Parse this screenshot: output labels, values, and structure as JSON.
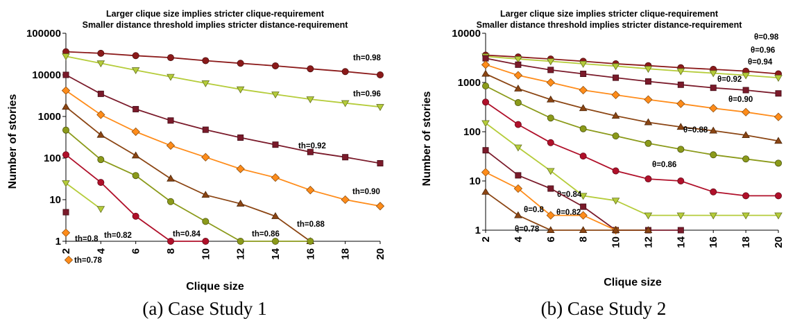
{
  "captions": [
    "(a) Case Study 1",
    "(b) Case Study 2"
  ],
  "chart_data": [
    {
      "type": "line",
      "title": [
        "Larger clique size implies stricter clique-requirement",
        "Smaller distance threshold implies stricter distance-requirement"
      ],
      "xlabel": "Clique size",
      "ylabel": "Number of stories",
      "yscale": "log",
      "ylim": [
        1,
        100000
      ],
      "xlim": [
        2,
        20
      ],
      "xticks": [
        2,
        4,
        6,
        8,
        10,
        12,
        14,
        16,
        18,
        20
      ],
      "yticks": [
        1,
        10,
        100,
        1000,
        10000,
        100000
      ],
      "ytick_labels": [
        "1",
        "10",
        "100",
        "1000",
        "10000",
        "100000"
      ],
      "grid": false,
      "series": [
        {
          "name": "th=0.98",
          "color": "#8b1a1a",
          "marker": "circle",
          "x": [
            2,
            4,
            6,
            8,
            10,
            12,
            14,
            16,
            18,
            20
          ],
          "values": [
            36000,
            33000,
            29000,
            26000,
            22000,
            19000,
            16500,
            14000,
            12000,
            10000
          ]
        },
        {
          "name": "th=0.96",
          "color": "#b5cc3a",
          "marker": "triangle-down",
          "x": [
            2,
            4,
            6,
            8,
            10,
            12,
            14,
            16,
            18,
            20
          ],
          "values": [
            28000,
            19000,
            13000,
            9000,
            6300,
            4500,
            3400,
            2600,
            2100,
            1700
          ]
        },
        {
          "name": "th=0.92",
          "color": "#7a1a2a",
          "marker": "square",
          "x": [
            2,
            4,
            6,
            8,
            10,
            12,
            14,
            16,
            18,
            20
          ],
          "values": [
            10000,
            3500,
            1500,
            800,
            480,
            310,
            210,
            140,
            105,
            75
          ]
        },
        {
          "name": "th=0.90",
          "color": "#ff8c1a",
          "marker": "diamond",
          "x": [
            2,
            4,
            6,
            8,
            10,
            12,
            14,
            16,
            18,
            20
          ],
          "values": [
            4200,
            1100,
            430,
            200,
            105,
            55,
            34,
            17,
            10,
            7
          ]
        },
        {
          "name": "th=0.88",
          "color": "#8b4513",
          "marker": "triangle-up",
          "x": [
            2,
            4,
            6,
            8,
            10,
            12,
            14,
            16
          ],
          "values": [
            1700,
            360,
            115,
            32,
            13,
            8,
            4,
            1
          ]
        },
        {
          "name": "th=0.86",
          "color": "#8b9a1a",
          "marker": "circle",
          "x": [
            2,
            4,
            6,
            8,
            10,
            12,
            14,
            16
          ],
          "values": [
            470,
            92,
            38,
            9,
            3,
            1,
            1,
            1
          ]
        },
        {
          "name": "th=0.84",
          "color": "#b0102a",
          "marker": "circle",
          "x": [
            2,
            4,
            6,
            8,
            10
          ],
          "values": [
            120,
            26,
            4,
            1,
            1
          ]
        },
        {
          "name": "th=0.82",
          "color": "#b5cc3a",
          "marker": "triangle-down",
          "x": [
            2,
            4
          ],
          "values": [
            25,
            6
          ]
        },
        {
          "name": "th=0.8",
          "color": "#7a1a2a",
          "marker": "square",
          "x": [
            2
          ],
          "values": [
            5
          ]
        },
        {
          "name": "th=0.78",
          "color": "#ff8c1a",
          "marker": "diamond",
          "x": [
            2
          ],
          "values": [
            1.6
          ]
        }
      ]
    },
    {
      "type": "line",
      "title": [
        "Larger clique size implies stricter clique-requirement",
        "Smaller distance threshold implies stricter distance-requirement"
      ],
      "xlabel": "Clique size",
      "ylabel": "Number of stories",
      "yscale": "log",
      "ylim": [
        1,
        10000
      ],
      "xlim": [
        2,
        20
      ],
      "xticks": [
        2,
        4,
        6,
        8,
        10,
        12,
        14,
        16,
        18,
        20
      ],
      "yticks": [
        1,
        10,
        100,
        1000,
        10000
      ],
      "ytick_labels": [
        "1",
        "10",
        "100",
        "1000",
        "10000"
      ],
      "grid": false,
      "series": [
        {
          "name": "θ=0.98",
          "color": "#8b1a1a",
          "marker": "circle",
          "x": [
            2,
            4,
            6,
            8,
            10,
            12,
            14,
            16,
            18,
            20
          ],
          "values": [
            3600,
            3300,
            3000,
            2700,
            2400,
            2200,
            2000,
            1850,
            1700,
            1500
          ]
        },
        {
          "name": "θ=0.96",
          "color": "#b5cc3a",
          "marker": "triangle-down",
          "x": [
            2,
            4,
            6,
            8,
            10,
            12,
            14,
            16,
            18,
            20
          ],
          "values": [
            3400,
            3000,
            2700,
            2400,
            2150,
            1900,
            1700,
            1550,
            1400,
            1250
          ]
        },
        {
          "name": "θ=0.94",
          "color": "#7a1a2a",
          "marker": "square",
          "x": [
            2,
            4,
            6,
            8,
            10,
            12,
            14,
            16,
            18,
            20
          ],
          "values": [
            3100,
            2300,
            1800,
            1500,
            1250,
            1050,
            900,
            780,
            700,
            600
          ]
        },
        {
          "name": "θ=0.92",
          "color": "#ff8c1a",
          "marker": "diamond",
          "x": [
            2,
            4,
            6,
            8,
            10,
            12,
            14,
            16,
            18,
            20
          ],
          "values": [
            2300,
            1400,
            1000,
            700,
            560,
            450,
            370,
            300,
            250,
            200
          ]
        },
        {
          "name": "θ=0.90",
          "color": "#8b4513",
          "marker": "triangle-up",
          "x": [
            2,
            4,
            6,
            8,
            10,
            12,
            14,
            16,
            18,
            20
          ],
          "values": [
            1500,
            750,
            450,
            300,
            210,
            155,
            125,
            105,
            85,
            65
          ]
        },
        {
          "name": "θ=0.88",
          "color": "#8b9a1a",
          "marker": "circle",
          "x": [
            2,
            4,
            6,
            8,
            10,
            12,
            14,
            16,
            18,
            20
          ],
          "values": [
            850,
            390,
            190,
            115,
            82,
            58,
            44,
            34,
            28,
            23
          ]
        },
        {
          "name": "θ=0.86",
          "color": "#b0102a",
          "marker": "circle",
          "x": [
            2,
            4,
            6,
            8,
            10,
            12,
            14,
            16,
            18,
            20
          ],
          "values": [
            400,
            140,
            60,
            32,
            16,
            11,
            10,
            6,
            5,
            5
          ]
        },
        {
          "name": "θ=0.84",
          "color": "#b5cc3a",
          "marker": "triangle-down",
          "x": [
            2,
            4,
            6,
            8,
            10,
            12,
            14,
            16,
            18,
            20
          ],
          "values": [
            150,
            48,
            16,
            5,
            4,
            2,
            2,
            2,
            2,
            2
          ]
        },
        {
          "name": "θ=0.82",
          "color": "#7a1a2a",
          "marker": "square",
          "x": [
            2,
            4,
            6,
            8,
            10,
            12,
            14
          ],
          "values": [
            42,
            13,
            7,
            3,
            1,
            1,
            1
          ]
        },
        {
          "name": "θ=0.8",
          "color": "#ff8c1a",
          "marker": "diamond",
          "x": [
            2,
            4,
            6,
            8,
            10
          ],
          "values": [
            15,
            7,
            2,
            2,
            1
          ]
        },
        {
          "name": "θ=0.78",
          "color": "#8b4513",
          "marker": "triangle-up",
          "x": [
            2,
            4,
            6,
            8,
            10,
            12
          ],
          "values": [
            6,
            2,
            1,
            1,
            1,
            1
          ]
        }
      ]
    }
  ]
}
